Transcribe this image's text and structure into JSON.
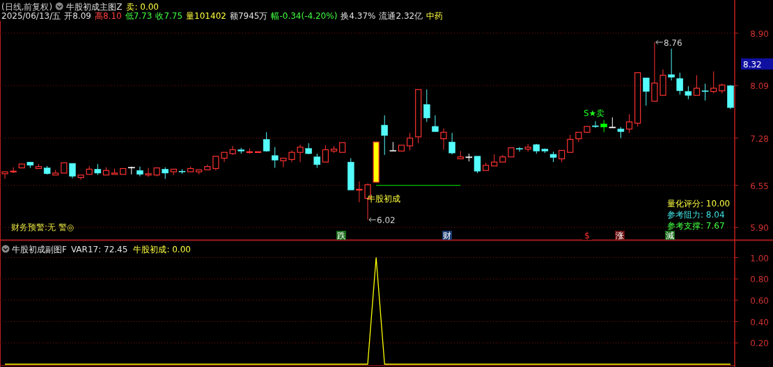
{
  "chart_data": [
    {
      "type": "candlestick",
      "title": "(日线,前复权)",
      "categories": [
        null,
        null,
        null,
        null,
        null,
        null,
        null,
        null,
        null,
        null,
        null,
        null,
        null,
        null,
        null,
        null,
        null,
        null,
        null,
        null,
        null,
        null,
        null,
        null,
        null,
        null,
        null,
        null,
        null,
        null,
        null,
        null,
        null,
        null,
        null,
        null,
        null,
        null,
        null,
        null,
        null,
        null,
        null,
        null,
        null,
        null,
        null,
        null,
        null,
        null,
        null,
        null,
        null,
        null,
        null,
        null,
        null,
        null,
        null,
        null,
        null,
        null,
        null,
        null,
        null,
        null,
        null,
        null,
        null,
        null,
        null,
        null,
        null,
        null,
        null,
        null,
        null,
        null,
        null,
        null,
        null,
        null,
        null,
        null,
        null,
        null,
        null
      ],
      "ohlc": [
        [
          6.73,
          6.76,
          6.65,
          6.76
        ],
        [
          6.76,
          6.83,
          6.74,
          6.77
        ],
        [
          6.82,
          6.88,
          6.81,
          6.88
        ],
        [
          6.91,
          6.91,
          6.82,
          6.86
        ],
        [
          6.81,
          6.88,
          6.81,
          6.84
        ],
        [
          6.82,
          6.85,
          6.72,
          6.73
        ],
        [
          6.71,
          6.79,
          6.71,
          6.74
        ],
        [
          6.74,
          6.91,
          6.74,
          6.9
        ],
        [
          6.89,
          6.89,
          6.66,
          6.69
        ],
        [
          6.67,
          6.71,
          6.64,
          6.71
        ],
        [
          6.72,
          6.85,
          6.72,
          6.8
        ],
        [
          6.8,
          6.88,
          6.71,
          6.74
        ],
        [
          6.71,
          6.83,
          6.71,
          6.78
        ],
        [
          6.72,
          6.81,
          6.71,
          6.74
        ],
        [
          6.72,
          6.81,
          6.72,
          6.81
        ],
        [
          6.83,
          6.84,
          6.72,
          6.83
        ],
        [
          6.78,
          6.84,
          6.69,
          6.72
        ],
        [
          6.71,
          6.82,
          6.68,
          6.73
        ],
        [
          6.71,
          6.82,
          6.69,
          6.82
        ],
        [
          6.8,
          6.83,
          6.65,
          6.74
        ],
        [
          6.76,
          6.8,
          6.71,
          6.8
        ],
        [
          6.77,
          6.8,
          6.73,
          6.76
        ],
        [
          6.76,
          6.84,
          6.76,
          6.81
        ],
        [
          6.76,
          6.79,
          6.72,
          6.79
        ],
        [
          6.79,
          6.87,
          6.79,
          6.84
        ],
        [
          6.81,
          7.0,
          6.78,
          7.0
        ],
        [
          6.97,
          7.06,
          6.91,
          7.06
        ],
        [
          7.04,
          7.16,
          7.02,
          7.1
        ],
        [
          7.1,
          7.13,
          7.04,
          7.08
        ],
        [
          7.06,
          7.12,
          7.04,
          7.07
        ],
        [
          7.06,
          7.08,
          7.06,
          7.07
        ],
        [
          7.26,
          7.37,
          7.07,
          7.08
        ],
        [
          7.01,
          7.14,
          6.82,
          6.94
        ],
        [
          6.93,
          6.97,
          6.83,
          6.97
        ],
        [
          6.95,
          7.09,
          6.91,
          7.06
        ],
        [
          7.06,
          7.18,
          6.91,
          7.14
        ],
        [
          7.12,
          7.2,
          7.03,
          7.04
        ],
        [
          6.99,
          7.04,
          6.82,
          6.87
        ],
        [
          6.91,
          7.17,
          6.9,
          7.1
        ],
        [
          7.08,
          7.16,
          7.05,
          7.11
        ],
        [
          7.06,
          7.22,
          7.06,
          7.21
        ],
        [
          6.91,
          6.97,
          6.48,
          6.48
        ],
        [
          6.48,
          6.61,
          6.29,
          6.49
        ],
        [
          6.35,
          6.58,
          6.02,
          6.56
        ],
        [
          6.6,
          7.22,
          6.6,
          7.22
        ],
        [
          7.48,
          7.63,
          7.02,
          7.32
        ],
        [
          7.09,
          7.22,
          7.09,
          7.09
        ],
        [
          7.08,
          7.17,
          7.08,
          7.17
        ],
        [
          7.16,
          7.36,
          7.09,
          7.28
        ],
        [
          7.3,
          8.03,
          7.2,
          8.03
        ],
        [
          7.8,
          8.03,
          7.53,
          7.59
        ],
        [
          7.46,
          7.63,
          7.38,
          7.38
        ],
        [
          7.27,
          7.43,
          7.1,
          7.37
        ],
        [
          7.22,
          7.36,
          7.03,
          7.05
        ],
        [
          6.96,
          7.08,
          6.96,
          6.99
        ],
        [
          6.99,
          7.04,
          6.92,
          6.99
        ],
        [
          7.0,
          7.0,
          6.74,
          6.77
        ],
        [
          6.78,
          6.9,
          6.78,
          6.86
        ],
        [
          6.85,
          7.03,
          6.85,
          6.91
        ],
        [
          6.91,
          7.02,
          6.91,
          6.99
        ],
        [
          6.99,
          7.13,
          6.99,
          7.13
        ],
        [
          7.12,
          7.14,
          7.07,
          7.11
        ],
        [
          7.11,
          7.19,
          7.07,
          7.14
        ],
        [
          7.18,
          7.19,
          7.04,
          7.08
        ],
        [
          7.11,
          7.12,
          7.05,
          7.08
        ],
        [
          7.03,
          7.07,
          6.91,
          6.98
        ],
        [
          6.96,
          7.09,
          6.91,
          7.09
        ],
        [
          7.06,
          7.33,
          7.06,
          7.26
        ],
        [
          7.27,
          7.37,
          7.22,
          7.37
        ],
        [
          7.37,
          7.46,
          7.37,
          7.46
        ],
        [
          7.47,
          7.54,
          7.44,
          7.47
        ],
        [
          7.5,
          7.56,
          7.37,
          7.45
        ],
        [
          7.45,
          7.6,
          7.44,
          7.45
        ],
        [
          7.42,
          7.45,
          7.28,
          7.38
        ],
        [
          7.42,
          7.65,
          7.36,
          7.53
        ],
        [
          7.51,
          8.29,
          7.46,
          8.29
        ],
        [
          8.21,
          8.21,
          7.78,
          8.0
        ],
        [
          7.85,
          8.76,
          7.85,
          8.13
        ],
        [
          7.94,
          8.34,
          7.94,
          8.25
        ],
        [
          8.26,
          8.66,
          8.17,
          8.22
        ],
        [
          8.2,
          8.29,
          7.95,
          8.01
        ],
        [
          8.0,
          8.08,
          7.88,
          7.94
        ],
        [
          7.94,
          8.25,
          7.94,
          8.05
        ],
        [
          8.01,
          8.12,
          7.86,
          8.01
        ],
        [
          8.0,
          8.31,
          7.97,
          8.05
        ],
        [
          8.01,
          8.12,
          7.97,
          8.1
        ],
        [
          8.09,
          8.1,
          7.73,
          7.75
        ]
      ],
      "colors": [
        "#ff3232",
        "#ff3232",
        "#ff3232",
        "#54fcfc",
        "#ff3232",
        "#54fcfc",
        "#ff3232",
        "#ff3232",
        "#54fcfc",
        "#ff3232",
        "#ff3232",
        "#54fcfc",
        "#ff3232",
        "#ff3232",
        "#ff3232",
        "#ffffff",
        "#54fcfc",
        "#ff3232",
        "#ff3232",
        "#54fcfc",
        "#ff3232",
        "#54fcfc",
        "#ff3232",
        "#ff3232",
        "#ff3232",
        "#ff3232",
        "#ff3232",
        "#ff3232",
        "#54fcfc",
        "#ff3232",
        "#ff3232",
        "#54fcfc",
        "#54fcfc",
        "#ff3232",
        "#ff3232",
        "#ff3232",
        "#54fcfc",
        "#54fcfc",
        "#ff3232",
        "#ff3232",
        "#ff3232",
        "#54fcfc",
        "#ff3232",
        "#ff3232",
        "#ffff00",
        "#54fcfc",
        "#ffffff",
        "#ff3232",
        "#ff3232",
        "#ff3232",
        "#54fcfc",
        "#54fcfc",
        "#ff3232",
        "#54fcfc",
        "#ff3232",
        "#ffffff",
        "#54fcfc",
        "#ff3232",
        "#ff3232",
        "#ff3232",
        "#ff3232",
        "#54fcfc",
        "#ff3232",
        "#54fcfc",
        "#54fcfc",
        "#54fcfc",
        "#ff3232",
        "#ff3232",
        "#ff3232",
        "#ff3232",
        "#54fcfc",
        "#00ff00",
        "#ffffff",
        "#54fcfc",
        "#ff3232",
        "#ff3232",
        "#54fcfc",
        "#ff3232",
        "#ff3232",
        "#54fcfc",
        "#54fcfc",
        "#54fcfc",
        "#ff3232",
        "#54fcfc",
        "#ff3232",
        "#ff3232",
        "#54fcfc"
      ],
      "series": [
        {
          "type": "line",
          "color": "#00c000",
          "values": [
            null,
            null,
            null,
            null,
            null,
            null,
            null,
            null,
            null,
            null,
            null,
            null,
            null,
            null,
            null,
            null,
            null,
            null,
            null,
            null,
            null,
            null,
            null,
            null,
            null,
            null,
            null,
            null,
            null,
            null,
            null,
            null,
            null,
            null,
            null,
            null,
            null,
            null,
            null,
            null,
            null,
            null,
            null,
            null,
            6.55,
            6.55,
            6.55,
            6.55,
            6.55,
            6.55,
            6.55,
            6.55,
            6.55,
            6.55,
            6.55,
            null,
            null,
            null,
            null,
            null,
            null,
            null,
            null,
            null,
            null,
            null,
            null,
            null,
            null,
            null,
            null,
            null,
            null,
            null,
            null,
            null,
            null,
            null,
            null,
            null,
            null,
            null,
            null,
            null,
            null,
            null,
            null
          ]
        }
      ],
      "ylim": [
        5.71,
        9.09
      ],
      "yticks": [
        {
          "value": 5.9,
          "label": "5.90"
        },
        {
          "value": 6.55,
          "label": "6.55"
        },
        {
          "value": 7.28,
          "label": "7.28"
        },
        {
          "value": 8.09,
          "label": "8.09"
        },
        {
          "value": 8.9,
          "label": "8.90"
        }
      ],
      "grid": "y",
      "annotations": [
        "牛股初成主图Z",
        "卖: 0.00",
        "2025/06/13/五",
        "开8.09",
        "高8.10",
        "低7.73",
        "收7.75",
        "量101402",
        "额7945万",
        "幅-0.34(-4.20%)",
        "换4.37%",
        "流通2.32亿",
        "中药",
        "8.76",
        "6.02",
        "牛股初成",
        "S★卖",
        "财务预警:无 警◎",
        "量化评分: 10.00",
        "参考阻力: 8.04",
        "参考支撑: 7.67",
        "8.32",
        "跌",
        "财",
        "$",
        "涨",
        "減"
      ]
    },
    {
      "type": "line",
      "title": "牛股初成副图F",
      "categories": [
        null,
        null,
        null,
        null,
        null,
        null,
        null,
        null,
        null,
        null,
        null,
        null,
        null,
        null,
        null,
        null,
        null,
        null,
        null,
        null,
        null,
        null,
        null,
        null,
        null,
        null,
        null,
        null,
        null,
        null,
        null,
        null,
        null,
        null,
        null,
        null,
        null,
        null,
        null,
        null,
        null,
        null,
        null,
        null,
        null,
        null,
        null,
        null,
        null,
        null,
        null,
        null,
        null,
        null,
        null,
        null,
        null,
        null,
        null,
        null,
        null,
        null,
        null,
        null,
        null,
        null,
        null,
        null,
        null,
        null,
        null,
        null,
        null,
        null,
        null,
        null,
        null,
        null,
        null,
        null,
        null,
        null,
        null,
        null,
        null,
        null,
        null
      ],
      "series": [
        {
          "color": "#ffff00",
          "values": [
            0,
            0,
            0,
            0,
            0,
            0,
            0,
            0,
            0,
            0,
            0,
            0,
            0,
            0,
            0,
            0,
            0,
            0,
            0,
            0,
            0,
            0,
            0,
            0,
            0,
            0,
            0,
            0,
            0,
            0,
            0,
            0,
            0,
            0,
            0,
            0,
            0,
            0,
            0,
            0,
            0,
            0,
            0,
            0,
            1,
            0,
            0,
            0,
            0,
            0,
            0,
            0,
            0,
            0,
            0,
            0,
            0,
            0,
            0,
            0,
            0,
            0,
            0,
            0,
            0,
            0,
            0,
            0,
            0,
            0,
            0,
            0,
            0,
            0,
            0,
            0,
            0,
            0,
            0,
            0,
            0,
            0,
            0,
            0,
            0,
            0,
            0
          ]
        }
      ],
      "ylim": [
        0,
        1.16
      ],
      "yticks": [
        {
          "value": 0.2,
          "label": "0.20"
        },
        {
          "value": 0.4,
          "label": "0.40"
        },
        {
          "value": 0.6,
          "label": "0.60"
        },
        {
          "value": 0.8,
          "label": "0.80"
        },
        {
          "value": 1.0,
          "label": "1.00"
        }
      ],
      "grid": "y",
      "annotations": [
        "VAR17: 72.45",
        "牛股初成: 0.00"
      ]
    }
  ]
}
